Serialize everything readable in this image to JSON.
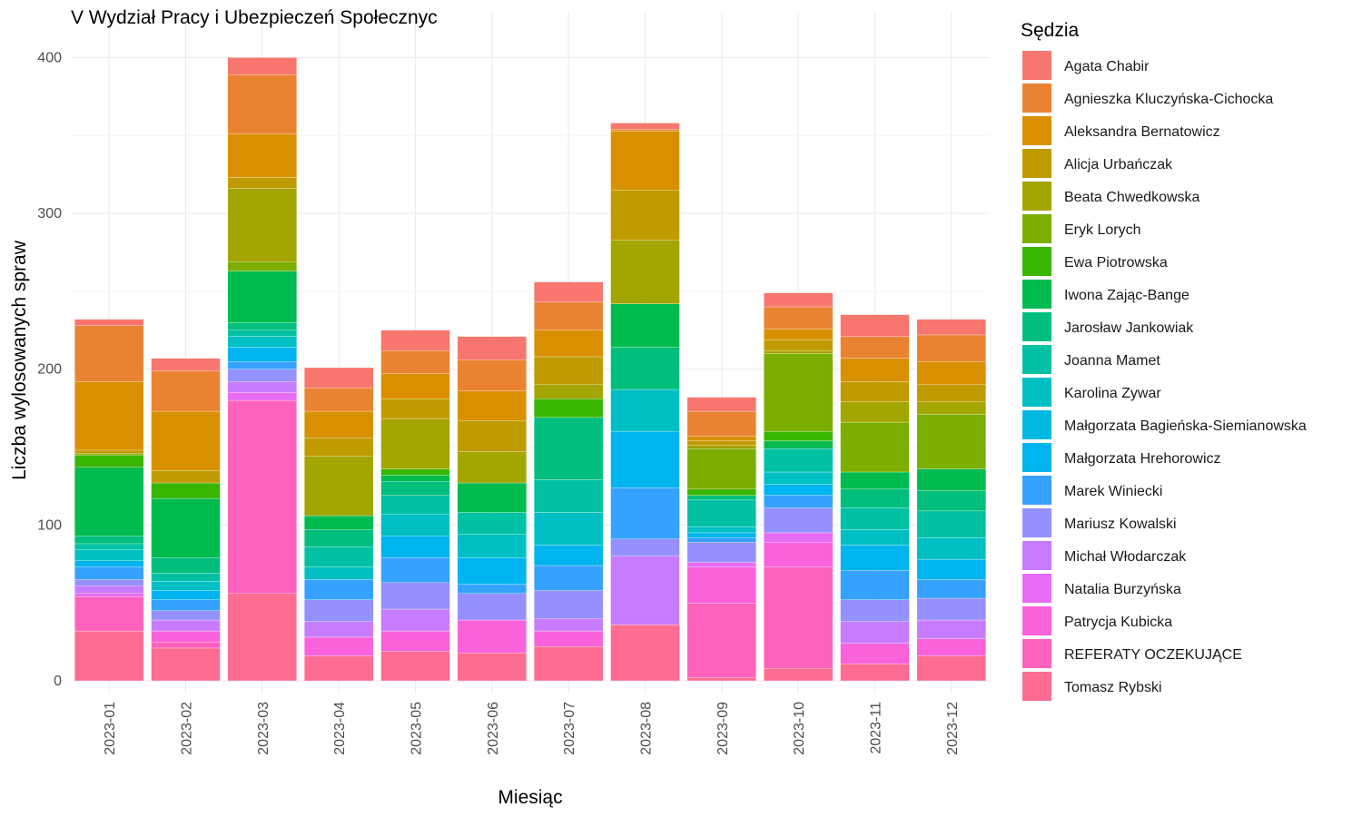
{
  "chart_data": {
    "type": "bar",
    "stacked": true,
    "title": "V Wydział Pracy i Ubezpieczeń Społecznyc",
    "xlabel": "Miesiąc",
    "ylabel": "Liczba wylosowanych spraw",
    "ylim": [
      0,
      410
    ],
    "yticks": [
      "0",
      "100",
      "200",
      "300",
      "400"
    ],
    "grid": true,
    "legend_title": "Sędzia",
    "legend_position": "right",
    "categories": [
      "2023-01",
      "2023-02",
      "2023-03",
      "2023-04",
      "2023-05",
      "2023-06",
      "2023-07",
      "2023-08",
      "2023-09",
      "2023-10",
      "2023-11",
      "2023-12"
    ],
    "series": [
      {
        "name": "Agata Chabir",
        "color": "#F8766D",
        "values": [
          4,
          8,
          11,
          13,
          13,
          15,
          13,
          4,
          9,
          9,
          14,
          10
        ]
      },
      {
        "name": "Agnieszka Kluczyńska-Cichocka",
        "color": "#EA8331",
        "values": [
          36,
          26,
          38,
          15,
          15,
          20,
          18,
          1,
          16,
          14,
          14,
          17
        ]
      },
      {
        "name": "Aleksandra Bernatowicz",
        "color": "#D89000",
        "values": [
          44,
          38,
          28,
          17,
          16,
          19,
          17,
          38,
          3,
          7,
          15,
          15
        ]
      },
      {
        "name": "Alicja Urbańczak",
        "color": "#C09B00",
        "values": [
          2,
          8,
          7,
          12,
          13,
          20,
          18,
          32,
          3,
          7,
          13,
          11
        ]
      },
      {
        "name": "Beata Chwedkowska",
        "color": "#A3A500",
        "values": [
          1,
          0,
          47,
          38,
          32,
          20,
          9,
          41,
          2,
          2,
          13,
          8
        ]
      },
      {
        "name": "Eryk Lorych",
        "color": "#7CAE00",
        "values": [
          0,
          0,
          6,
          0,
          0,
          0,
          0,
          0,
          26,
          50,
          32,
          35
        ]
      },
      {
        "name": "Ewa Piotrowska",
        "color": "#39B600",
        "values": [
          8,
          10,
          0,
          0,
          4,
          0,
          12,
          0,
          4,
          6,
          0,
          0
        ]
      },
      {
        "name": "Iwona Zając-Bange",
        "color": "#00BB4E",
        "values": [
          44,
          38,
          33,
          9,
          4,
          19,
          0,
          28,
          0,
          5,
          11,
          14
        ]
      },
      {
        "name": "Jarosław Jankowiak",
        "color": "#00BF7D",
        "values": [
          5,
          10,
          5,
          11,
          9,
          0,
          40,
          27,
          3,
          0,
          12,
          13
        ]
      },
      {
        "name": "Joanna Mamet",
        "color": "#00C1A3",
        "values": [
          4,
          5,
          4,
          13,
          12,
          14,
          21,
          0,
          17,
          15,
          14,
          17
        ]
      },
      {
        "name": "Karolina Zywar",
        "color": "#00BFC4",
        "values": [
          7,
          6,
          7,
          8,
          14,
          15,
          21,
          27,
          4,
          8,
          10,
          14
        ]
      },
      {
        "name": "Małgorzata Bagieńska-Siemianowska",
        "color": "#00B9E3",
        "values": [
          0,
          0,
          0,
          0,
          0,
          0,
          0,
          0,
          0,
          0,
          0,
          0
        ]
      },
      {
        "name": "Małgorzata Hrehorowicz",
        "color": "#00B4EF",
        "values": [
          4,
          6,
          9,
          0,
          14,
          17,
          13,
          36,
          3,
          7,
          16,
          13
        ]
      },
      {
        "name": "Marek Winiecki",
        "color": "#35A2FF",
        "values": [
          8,
          7,
          5,
          13,
          16,
          6,
          16,
          33,
          3,
          8,
          19,
          12
        ]
      },
      {
        "name": "Mariusz Kowalski",
        "color": "#9590FF",
        "values": [
          4,
          6,
          8,
          14,
          17,
          17,
          18,
          11,
          13,
          16,
          14,
          14
        ]
      },
      {
        "name": "Michał Włodarczak",
        "color": "#C77CFF",
        "values": [
          5,
          7,
          7,
          10,
          14,
          0,
          8,
          44,
          0,
          0,
          14,
          12
        ]
      },
      {
        "name": "Natalia Burzyńska",
        "color": "#E76BF3",
        "values": [
          2,
          0,
          5,
          0,
          0,
          0,
          0,
          0,
          3,
          6,
          0,
          0
        ]
      },
      {
        "name": "Patrycja Kubicka",
        "color": "#FA62DB",
        "values": [
          0,
          7,
          0,
          12,
          13,
          21,
          10,
          0,
          23,
          16,
          13,
          11
        ]
      },
      {
        "name": "REFERATY OCZEKUJĄCE",
        "color": "#FF62BC",
        "values": [
          22,
          4,
          124,
          0,
          0,
          0,
          0,
          0,
          48,
          65,
          0,
          0
        ]
      },
      {
        "name": "Tomasz Rybski",
        "color": "#FF6C91",
        "values": [
          32,
          21,
          56,
          16,
          19,
          18,
          22,
          36,
          2,
          8,
          11,
          16
        ]
      }
    ]
  }
}
